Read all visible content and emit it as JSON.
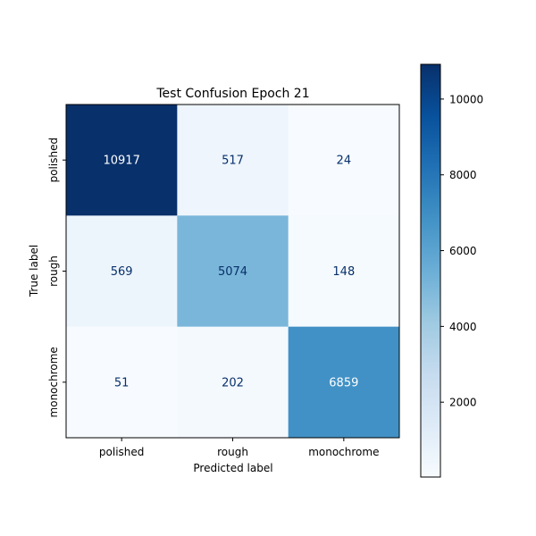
{
  "chart_data": {
    "type": "heatmap",
    "title": "Test Confusion Epoch 21",
    "xlabel": "Predicted label",
    "ylabel": "True label",
    "x_categories": [
      "polished",
      "rough",
      "monochrome"
    ],
    "y_categories": [
      "polished",
      "rough",
      "monochrome"
    ],
    "values": [
      [
        10917,
        517,
        24
      ],
      [
        569,
        5074,
        148
      ],
      [
        51,
        202,
        6859
      ]
    ],
    "colormap": "Blues",
    "colorbar": {
      "min": 24,
      "max": 10917,
      "ticks": [
        2000,
        4000,
        6000,
        8000,
        10000
      ],
      "tick_labels": [
        "2000",
        "4000",
        "6000",
        "8000",
        "10000"
      ]
    },
    "text_colors": {
      "dark": "#08306b",
      "light": "#ffffff"
    }
  }
}
